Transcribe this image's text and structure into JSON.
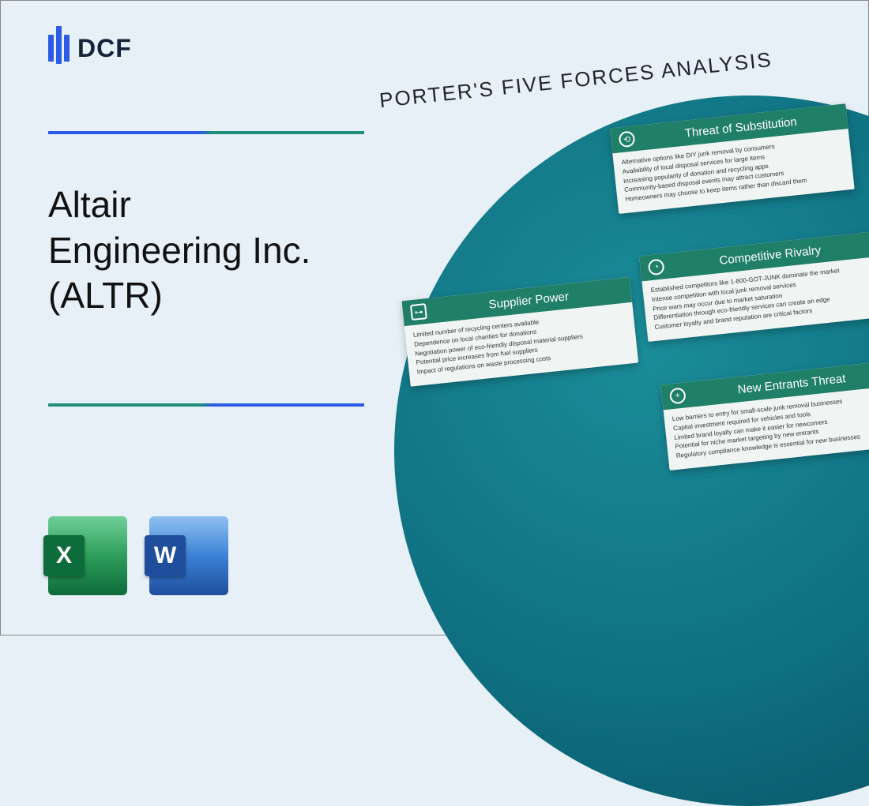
{
  "brand": "DCF",
  "company_title": "Altair Engineering Inc. (ALTR)",
  "file_icons": [
    {
      "letter": "X",
      "label": "Excel"
    },
    {
      "letter": "W",
      "label": "Word"
    }
  ],
  "analysis_title": "PORTER'S FIVE FORCES ANALYSIS",
  "colors": {
    "page_bg": "#e6f0f6",
    "accent_blue": "#2d5be3",
    "accent_teal": "#1f8f7b",
    "card_header": "#1f7f67",
    "circle_inner": "#1b8d99",
    "circle_outer": "#074b5d"
  },
  "cards": {
    "substitution": {
      "title": "Threat of Substitution",
      "points": [
        "Alternative options like DIY junk removal by consumers",
        "Availability of local disposal services for large items",
        "Increasing popularity of donation and recycling apps",
        "Community-based disposal events may attract customers",
        "Homeowners may choose to keep items rather than discard them"
      ]
    },
    "supplier": {
      "title": "Supplier Power",
      "points": [
        "Limited number of recycling centers available",
        "Dependence on local charities for donations",
        "Negotiation power of eco-friendly disposal material suppliers",
        "Potential price increases from fuel suppliers",
        "Impact of regulations on waste processing costs"
      ]
    },
    "rivalry": {
      "title": "Competitive Rivalry",
      "points": [
        "Established competitors like 1-800-GOT-JUNK dominate the market",
        "Intense competition with local junk removal services",
        "Price wars may occur due to market saturation",
        "Differentiation through eco-friendly services can create an edge",
        "Customer loyalty and brand reputation are critical factors"
      ]
    },
    "entrants": {
      "title": "New Entrants Threat",
      "points": [
        "Low barriers to entry for small-scale junk removal businesses",
        "Capital investment required for vehicles and tools",
        "Limited brand loyalty can make it easier for newcomers",
        "Potential for niche market targeting by new entrants",
        "Regulatory compliance knowledge is essential for new businesses"
      ]
    }
  }
}
